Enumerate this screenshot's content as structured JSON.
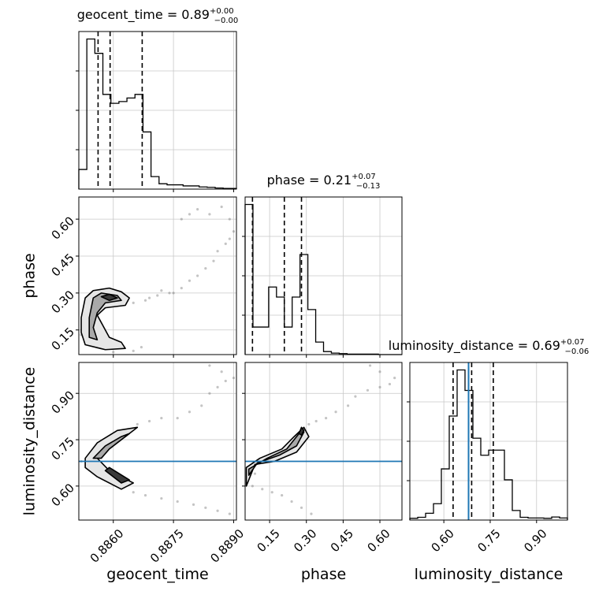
{
  "chart_data": {
    "type": "corner",
    "parameters": [
      "geocent_time",
      "phase",
      "luminosity_distance"
    ],
    "titles": [
      {
        "param": "geocent_time",
        "prefix": "geocent_time = ",
        "median": "0.89",
        "upper": "+0.00",
        "lower": "−0.00"
      },
      {
        "param": "phase",
        "prefix": "phase = ",
        "median": "0.21",
        "upper": "+0.07",
        "lower": "−0.13"
      },
      {
        "param": "luminosity_distance",
        "prefix": "luminosity_distance = ",
        "median": "0.69",
        "upper": "+0.07",
        "lower": "−0.06"
      }
    ],
    "axis_labels": {
      "x": [
        "geocent_time",
        "phase",
        "luminosity_distance"
      ],
      "y": [
        "phase",
        "luminosity_distance"
      ]
    },
    "ranges": {
      "geocent_time": [
        0.88514,
        0.88907
      ],
      "phase": [
        0.05,
        0.69
      ],
      "luminosity_distance": [
        0.49,
        1.0
      ]
    },
    "ticks": {
      "geocent_time": [
        0.886,
        0.8875,
        0.889
      ],
      "phase": [
        0.15,
        0.3,
        0.45,
        0.6
      ],
      "luminosity_distance": [
        0.6,
        0.75,
        0.9
      ]
    },
    "tick_labels": {
      "geocent_time": [
        "0.8860",
        "0.8875",
        "0.8890"
      ],
      "phase": [
        "0.15",
        "0.30",
        "0.45",
        "0.60"
      ],
      "luminosity_distance": [
        "0.60",
        "0.75",
        "0.90"
      ]
    },
    "truth": {
      "luminosity_distance": 0.68
    },
    "truth_color": "#1f77b4",
    "quantiles": {
      "geocent_time": [
        0.88562,
        0.88592,
        0.88672
      ],
      "phase": [
        0.08,
        0.21,
        0.28
      ],
      "luminosity_distance": [
        0.63,
        0.69,
        0.76
      ]
    },
    "histograms": {
      "geocent_time": {
        "edges": [
          0.88514,
          0.88534,
          0.88554,
          0.88574,
          0.88594,
          0.88614,
          0.88634,
          0.88654,
          0.88674,
          0.88694,
          0.88714,
          0.88734,
          0.88754,
          0.88774,
          0.88794,
          0.88814,
          0.88834,
          0.88854,
          0.88874,
          0.88894,
          0.88907
        ],
        "counts": [
          55,
          420,
          380,
          265,
          240,
          245,
          255,
          265,
          160,
          35,
          15,
          12,
          12,
          9,
          9,
          6,
          5,
          3,
          2,
          2
        ]
      },
      "phase": {
        "edges": [
          0.05,
          0.082,
          0.114,
          0.146,
          0.178,
          0.21,
          0.242,
          0.274,
          0.306,
          0.338,
          0.37,
          0.402,
          0.434,
          0.466,
          0.498,
          0.53,
          0.562,
          0.594,
          0.626,
          0.658,
          0.69
        ],
        "counts": [
          300,
          55,
          55,
          135,
          115,
          55,
          115,
          200,
          90,
          25,
          6,
          3,
          2,
          1,
          1,
          1,
          1,
          0,
          0,
          0
        ]
      },
      "luminosity_distance": {
        "edges": [
          0.49,
          0.5155,
          0.541,
          0.5665,
          0.592,
          0.6175,
          0.643,
          0.6685,
          0.694,
          0.7195,
          0.745,
          0.7705,
          0.796,
          0.8215,
          0.847,
          0.8725,
          0.898,
          0.9235,
          0.949,
          0.9745,
          1.0
        ],
        "counts": [
          5,
          8,
          20,
          48,
          150,
          305,
          440,
          380,
          240,
          190,
          205,
          205,
          118,
          28,
          8,
          6,
          6,
          5,
          9,
          6
        ]
      }
    },
    "contours": {
      "geocent_time-phase": [
        [
          [
            0.8853,
            0.28
          ],
          [
            0.8855,
            0.31
          ],
          [
            0.8859,
            0.32
          ],
          [
            0.8862,
            0.305
          ],
          [
            0.8864,
            0.28
          ],
          [
            0.8863,
            0.25
          ],
          [
            0.8858,
            0.24
          ],
          [
            0.8856,
            0.21
          ],
          [
            0.8859,
            0.12
          ],
          [
            0.8862,
            0.1
          ],
          [
            0.8863,
            0.075
          ],
          [
            0.8858,
            0.07
          ],
          [
            0.8853,
            0.09
          ],
          [
            0.8852,
            0.14
          ],
          [
            0.8852,
            0.2
          ],
          [
            0.8853,
            0.28
          ]
        ],
        [
          [
            0.8855,
            0.28
          ],
          [
            0.8857,
            0.3
          ],
          [
            0.8861,
            0.29
          ],
          [
            0.8862,
            0.27
          ],
          [
            0.8858,
            0.26
          ],
          [
            0.8856,
            0.22
          ],
          [
            0.8855,
            0.16
          ],
          [
            0.8856,
            0.11
          ],
          [
            0.8854,
            0.12
          ],
          [
            0.8854,
            0.2
          ],
          [
            0.8855,
            0.28
          ]
        ],
        [
          [
            0.8857,
            0.285
          ],
          [
            0.8859,
            0.295
          ],
          [
            0.8861,
            0.28
          ],
          [
            0.8859,
            0.27
          ],
          [
            0.8857,
            0.285
          ]
        ]
      ],
      "geocent_time-luminosity_distance": [
        [
          [
            0.8853,
            0.69
          ],
          [
            0.8856,
            0.74
          ],
          [
            0.8861,
            0.78
          ],
          [
            0.8866,
            0.79
          ],
          [
            0.8863,
            0.76
          ],
          [
            0.8858,
            0.72
          ],
          [
            0.8856,
            0.69
          ],
          [
            0.8859,
            0.65
          ],
          [
            0.8865,
            0.61
          ],
          [
            0.8862,
            0.59
          ],
          [
            0.8856,
            0.63
          ],
          [
            0.8853,
            0.66
          ],
          [
            0.8853,
            0.69
          ]
        ],
        [
          [
            0.8855,
            0.69
          ],
          [
            0.8858,
            0.73
          ],
          [
            0.8862,
            0.76
          ],
          [
            0.8864,
            0.77
          ],
          [
            0.8859,
            0.72
          ],
          [
            0.8857,
            0.69
          ],
          [
            0.8855,
            0.69
          ]
        ],
        [
          [
            0.8858,
            0.65
          ],
          [
            0.8862,
            0.61
          ],
          [
            0.8864,
            0.62
          ],
          [
            0.8859,
            0.66
          ],
          [
            0.8858,
            0.65
          ]
        ]
      ],
      "phase-luminosity_distance": [
        [
          [
            0.055,
            0.66
          ],
          [
            0.11,
            0.69
          ],
          [
            0.2,
            0.72
          ],
          [
            0.25,
            0.76
          ],
          [
            0.29,
            0.79
          ],
          [
            0.31,
            0.76
          ],
          [
            0.26,
            0.71
          ],
          [
            0.17,
            0.68
          ],
          [
            0.09,
            0.67
          ],
          [
            0.055,
            0.6
          ],
          [
            0.055,
            0.66
          ]
        ],
        [
          [
            0.065,
            0.655
          ],
          [
            0.14,
            0.69
          ],
          [
            0.22,
            0.72
          ],
          [
            0.27,
            0.77
          ],
          [
            0.29,
            0.775
          ],
          [
            0.26,
            0.73
          ],
          [
            0.19,
            0.7
          ],
          [
            0.1,
            0.675
          ],
          [
            0.065,
            0.635
          ],
          [
            0.065,
            0.655
          ]
        ],
        [
          [
            0.27,
            0.77
          ],
          [
            0.28,
            0.79
          ],
          [
            0.29,
            0.78
          ],
          [
            0.28,
            0.765
          ],
          [
            0.27,
            0.77
          ]
        ]
      ]
    },
    "samples": {
      "geocent_time-phase": [
        [
          0.8865,
          0.26
        ],
        [
          0.8868,
          0.27
        ],
        [
          0.8871,
          0.29
        ],
        [
          0.8874,
          0.3
        ],
        [
          0.8877,
          0.32
        ],
        [
          0.8879,
          0.35
        ],
        [
          0.8881,
          0.37
        ],
        [
          0.8883,
          0.4
        ],
        [
          0.8885,
          0.43
        ],
        [
          0.8886,
          0.47
        ],
        [
          0.8888,
          0.5
        ],
        [
          0.8889,
          0.52
        ],
        [
          0.889,
          0.55
        ],
        [
          0.8877,
          0.6
        ],
        [
          0.8879,
          0.62
        ],
        [
          0.8881,
          0.64
        ],
        [
          0.8884,
          0.62
        ],
        [
          0.8887,
          0.65
        ],
        [
          0.8889,
          0.6
        ],
        [
          0.8854,
          0.1
        ],
        [
          0.8856,
          0.08
        ],
        [
          0.886,
          0.06
        ],
        [
          0.8865,
          0.065
        ],
        [
          0.8867,
          0.08
        ],
        [
          0.8852,
          0.13
        ],
        [
          0.8851,
          0.22
        ],
        [
          0.8869,
          0.28
        ],
        [
          0.8872,
          0.31
        ],
        [
          0.8875,
          0.3
        ]
      ],
      "geocent_time-luminosity_distance": [
        [
          0.8866,
          0.8
        ],
        [
          0.8869,
          0.81
        ],
        [
          0.8872,
          0.82
        ],
        [
          0.8876,
          0.82
        ],
        [
          0.8879,
          0.84
        ],
        [
          0.8882,
          0.86
        ],
        [
          0.8884,
          0.9
        ],
        [
          0.8886,
          0.92
        ],
        [
          0.8888,
          0.94
        ],
        [
          0.889,
          0.95
        ],
        [
          0.8887,
          0.97
        ],
        [
          0.8884,
          0.99
        ],
        [
          0.8865,
          0.58
        ],
        [
          0.8868,
          0.57
        ],
        [
          0.8872,
          0.56
        ],
        [
          0.8876,
          0.55
        ],
        [
          0.888,
          0.54
        ],
        [
          0.8883,
          0.53
        ],
        [
          0.8886,
          0.52
        ],
        [
          0.8889,
          0.51
        ],
        [
          0.8852,
          0.68
        ],
        [
          0.8854,
          0.7
        ],
        [
          0.8857,
          0.66
        ]
      ],
      "phase-luminosity_distance": [
        [
          0.31,
          0.8
        ],
        [
          0.34,
          0.81
        ],
        [
          0.38,
          0.82
        ],
        [
          0.42,
          0.84
        ],
        [
          0.47,
          0.86
        ],
        [
          0.5,
          0.89
        ],
        [
          0.55,
          0.91
        ],
        [
          0.6,
          0.92
        ],
        [
          0.64,
          0.93
        ],
        [
          0.66,
          0.95
        ],
        [
          0.6,
          0.97
        ],
        [
          0.56,
          0.99
        ],
        [
          0.08,
          0.6
        ],
        [
          0.12,
          0.59
        ],
        [
          0.16,
          0.58
        ],
        [
          0.2,
          0.57
        ],
        [
          0.24,
          0.55
        ],
        [
          0.28,
          0.53
        ],
        [
          0.32,
          0.51
        ],
        [
          0.06,
          0.63
        ],
        [
          0.09,
          0.64
        ]
      ]
    }
  }
}
